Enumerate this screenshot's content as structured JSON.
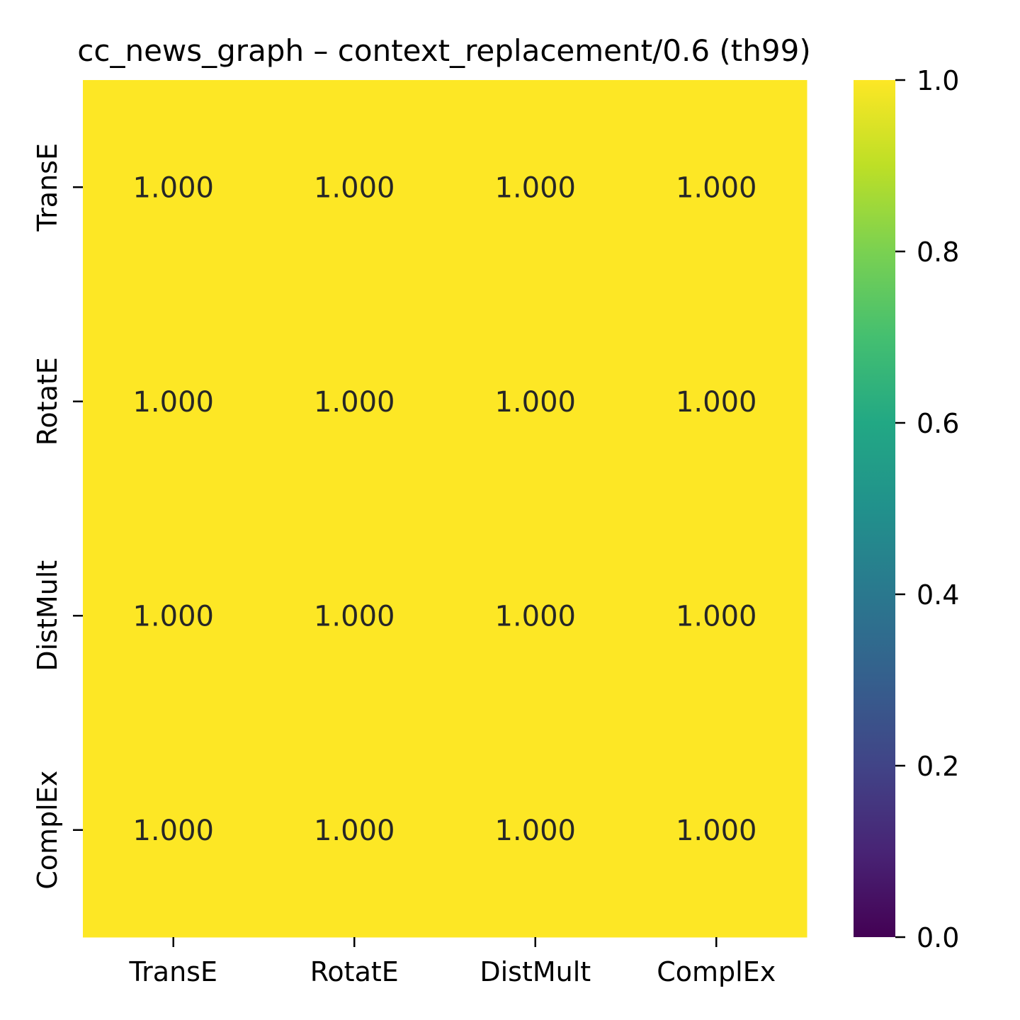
{
  "chart_data": {
    "type": "heatmap",
    "title": "cc_news_graph – context_replacement/0.6  (th99)",
    "xlabel": "",
    "ylabel": "",
    "x_categories": [
      "TransE",
      "RotatE",
      "DistMult",
      "ComplEx"
    ],
    "y_categories": [
      "TransE",
      "RotatE",
      "DistMult",
      "ComplEx"
    ],
    "values": [
      [
        1.0,
        1.0,
        1.0,
        1.0
      ],
      [
        1.0,
        1.0,
        1.0,
        1.0
      ],
      [
        1.0,
        1.0,
        1.0,
        1.0
      ],
      [
        1.0,
        1.0,
        1.0,
        1.0
      ]
    ],
    "cell_labels": [
      [
        "1.000",
        "1.000",
        "1.000",
        "1.000"
      ],
      [
        "1.000",
        "1.000",
        "1.000",
        "1.000"
      ],
      [
        "1.000",
        "1.000",
        "1.000",
        "1.000"
      ],
      [
        "1.000",
        "1.000",
        "1.000",
        "1.000"
      ]
    ],
    "colormap": "viridis",
    "colorbar": {
      "range": [
        0.0,
        1.0
      ],
      "ticks": [
        0.0,
        0.2,
        0.4,
        0.6,
        0.8,
        1.0
      ],
      "tick_labels": [
        "0.0",
        "0.2",
        "0.4",
        "0.6",
        "0.8",
        "1.0"
      ]
    },
    "grid": false,
    "legend": "colorbar-right"
  }
}
